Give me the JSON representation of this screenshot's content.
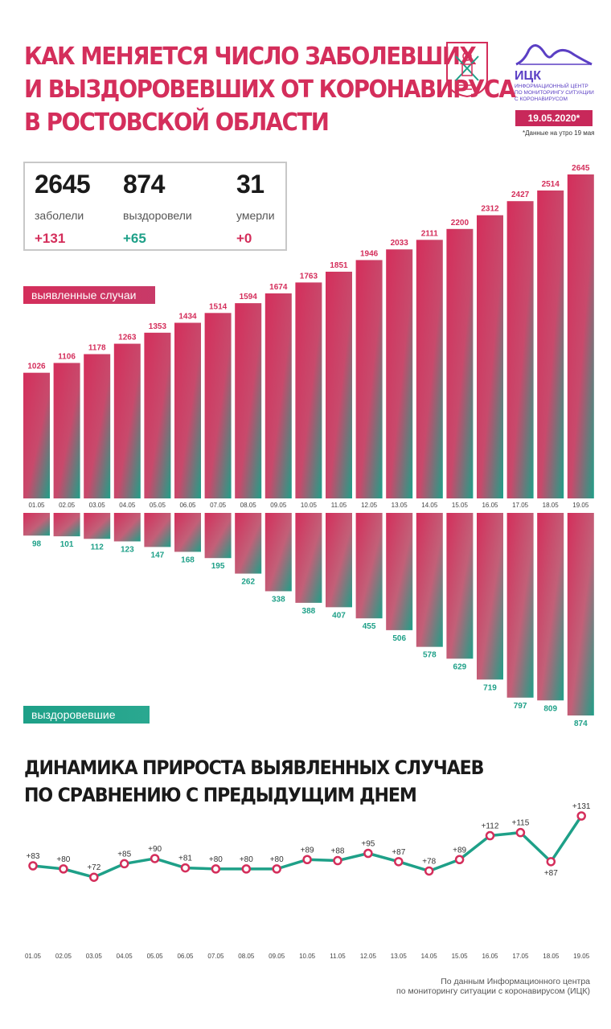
{
  "title_lines": [
    "Как меняется число заболевших",
    "и выздоровевших от коронавируса",
    "в Ростовской области"
  ],
  "logo": {
    "name": "ИЦК",
    "subtitle_lines": [
      "Информационный центр",
      "по мониторингу ситуации",
      "с коронавирусом"
    ],
    "color": "#5b3fc4"
  },
  "date_badge": "19.05.2020*",
  "date_note": "*Данные на утро 19 мая",
  "stats": [
    {
      "value": "2645",
      "label": "заболели",
      "delta": "+131",
      "delta_color": "pink"
    },
    {
      "value": "874",
      "label": "выздоровели",
      "delta": "+65",
      "delta_color": "teal"
    },
    {
      "value": "31",
      "label": "умерли",
      "delta": "+0",
      "delta_color": "pink"
    }
  ],
  "tags": {
    "cases": "выявленные случаи",
    "recovered": "выздоровевшие"
  },
  "colors": {
    "pink": "#d42e5b",
    "teal": "#1ea088"
  },
  "chart_data": [
    {
      "type": "bar",
      "categories": [
        "01.05",
        "02.05",
        "03.05",
        "04.05",
        "05.05",
        "06.05",
        "07.05",
        "08.05",
        "09.05",
        "10.05",
        "11.05",
        "12.05",
        "13.05",
        "14.05",
        "15.05",
        "16.05",
        "17.05",
        "18.05",
        "19.05"
      ],
      "series": [
        {
          "name": "выявленные случаи",
          "values": [
            1026,
            1106,
            1178,
            1263,
            1353,
            1434,
            1514,
            1594,
            1674,
            1763,
            1851,
            1946,
            2033,
            2111,
            2200,
            2312,
            2427,
            2514,
            2645
          ]
        },
        {
          "name": "выздоровевшие",
          "values": [
            98,
            101,
            112,
            123,
            147,
            168,
            195,
            262,
            338,
            388,
            407,
            455,
            506,
            578,
            629,
            719,
            797,
            809,
            874
          ]
        }
      ]
    },
    {
      "type": "line",
      "title_lines": [
        "Динамика прироста выявленных случаев",
        "по сравнению с предыдущим днем"
      ],
      "categories": [
        "01.05",
        "02.05",
        "03.05",
        "04.05",
        "05.05",
        "06.05",
        "07.05",
        "08.05",
        "09.05",
        "10.05",
        "11.05",
        "12.05",
        "13.05",
        "14.05",
        "15.05",
        "16.05",
        "17.05",
        "18.05",
        "19.05"
      ],
      "values": [
        83,
        80,
        72,
        85,
        90,
        81,
        80,
        80,
        80,
        89,
        88,
        95,
        87,
        78,
        89,
        112,
        115,
        87,
        131
      ],
      "point_labels": [
        "+83",
        "+80",
        "+72",
        "+85",
        "+90",
        "+81",
        "+80",
        "+80",
        "+80",
        "+89",
        "+88",
        "+95",
        "+87",
        "+78",
        "+89",
        "+112",
        "+115",
        "+87",
        "+131"
      ]
    }
  ],
  "source_lines": [
    "По данным Информационного центра",
    "по мониторингу ситуации с коронавирусом (ИЦК)"
  ]
}
